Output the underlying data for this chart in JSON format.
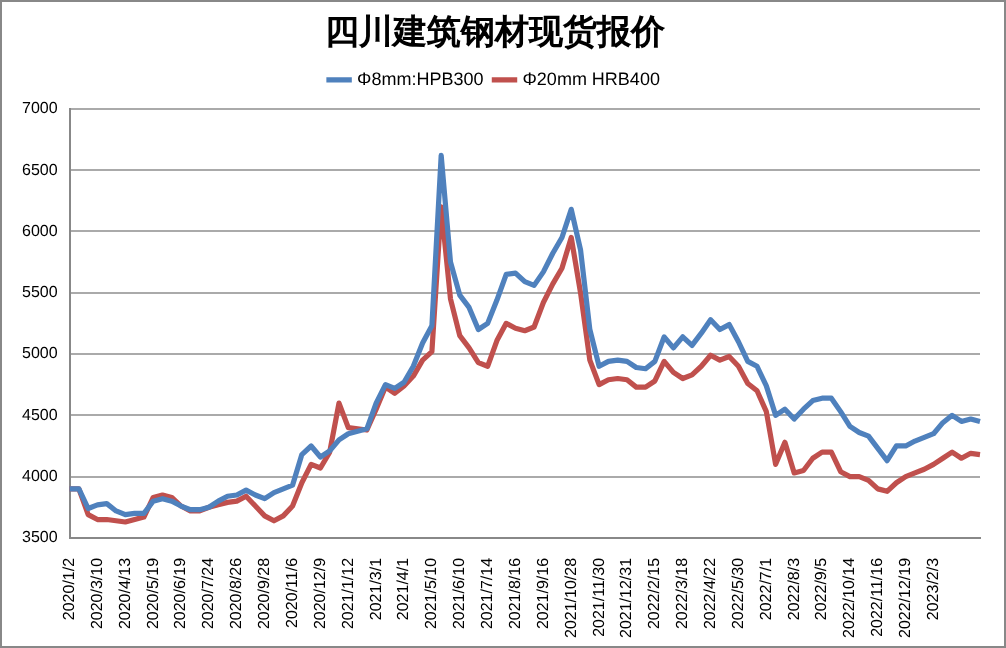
{
  "chart_data": {
    "type": "line",
    "title": "四川建筑钢材现货报价",
    "categories": [
      "2020/1/2",
      null,
      null,
      "2020/3/10",
      null,
      null,
      "2020/4/13",
      null,
      null,
      "2020/5/19",
      null,
      null,
      "2020/6/19",
      null,
      null,
      "2020/7/24",
      null,
      null,
      "2020/8/26",
      null,
      null,
      "2020/9/28",
      null,
      null,
      "2020/11/6",
      null,
      null,
      "2020/12/9",
      null,
      null,
      "2021/1/12",
      null,
      null,
      "2021/3/1",
      null,
      null,
      "2021/4/1",
      null,
      null,
      "2021/5/10",
      null,
      null,
      "2021/6/10",
      null,
      null,
      "2021/7/14",
      null,
      null,
      "2021/8/16",
      null,
      null,
      "2021/9/16",
      null,
      null,
      "2021/10/28",
      null,
      null,
      "2021/11/30",
      null,
      null,
      "2021/12/31",
      null,
      null,
      "2022/2/15",
      null,
      null,
      "2022/3/18",
      null,
      null,
      "2022/4/22",
      null,
      null,
      "2022/5/30",
      null,
      null,
      "2022/7/1",
      null,
      null,
      "2022/8/3",
      null,
      null,
      "2022/9/5",
      null,
      null,
      "2022/10/14",
      null,
      null,
      "2022/11/16",
      null,
      null,
      "2022/12/19",
      null,
      null,
      "2023/2/3",
      null,
      null,
      null,
      null,
      null
    ],
    "series": [
      {
        "name": "Φ8mm:HPB300",
        "color": "#4f81bd",
        "values": [
          3900,
          3900,
          3740,
          3770,
          3780,
          3720,
          3690,
          3700,
          3700,
          3800,
          3820,
          3800,
          3760,
          3730,
          3730,
          3750,
          3800,
          3840,
          3850,
          3890,
          3850,
          3820,
          3870,
          3900,
          3930,
          4180,
          4250,
          4160,
          4210,
          4300,
          4350,
          4370,
          4390,
          4600,
          4750,
          4720,
          4770,
          4900,
          5090,
          5230,
          6620,
          5750,
          5480,
          5380,
          5200,
          5250,
          5440,
          5650,
          5660,
          5590,
          5560,
          5670,
          5820,
          5950,
          6180,
          5850,
          5200,
          4900,
          4940,
          4950,
          4940,
          4890,
          4880,
          4940,
          5140,
          5050,
          5140,
          5070,
          5170,
          5280,
          5200,
          5240,
          5100,
          4940,
          4900,
          4740,
          4500,
          4550,
          4470,
          4550,
          4620,
          4640,
          4640,
          4530,
          4410,
          4360,
          4330,
          4230,
          4130,
          4250,
          4250,
          4290,
          4320,
          4350,
          4440,
          4500,
          4450,
          4470,
          4450
        ]
      },
      {
        "name": "Φ20mm HRB400",
        "color": "#c0504d",
        "values": [
          3900,
          3900,
          3690,
          3650,
          3650,
          3640,
          3630,
          3650,
          3670,
          3830,
          3850,
          3830,
          3760,
          3720,
          3720,
          3750,
          3770,
          3790,
          3800,
          3840,
          3760,
          3680,
          3640,
          3680,
          3760,
          3950,
          4100,
          4070,
          4200,
          4600,
          4400,
          4390,
          4380,
          4550,
          4730,
          4680,
          4740,
          4820,
          4950,
          5020,
          6200,
          5450,
          5150,
          5050,
          4930,
          4900,
          5110,
          5250,
          5210,
          5190,
          5220,
          5420,
          5570,
          5700,
          5950,
          5500,
          4950,
          4750,
          4790,
          4800,
          4790,
          4730,
          4730,
          4780,
          4940,
          4850,
          4800,
          4830,
          4900,
          4990,
          4950,
          4980,
          4900,
          4760,
          4700,
          4530,
          4100,
          4280,
          4030,
          4050,
          4150,
          4200,
          4200,
          4040,
          4000,
          4000,
          3970,
          3900,
          3880,
          3950,
          4000,
          4030,
          4060,
          4100,
          4150,
          4200,
          4150,
          4190,
          4180
        ]
      }
    ],
    "ylim": [
      3500,
      7000
    ],
    "yticks": [
      3500,
      4000,
      4500,
      5000,
      5500,
      6000,
      6500,
      7000
    ],
    "grid": "y",
    "legend": "top",
    "marker": "none",
    "line_style": "solid"
  }
}
